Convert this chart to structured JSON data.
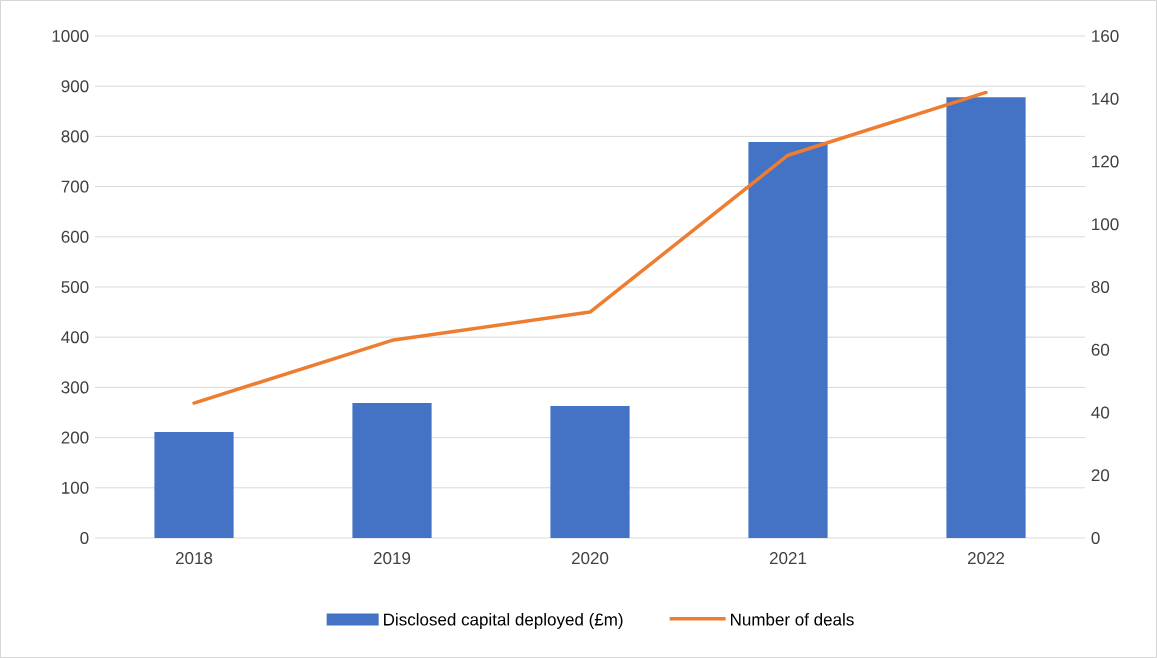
{
  "chart_data": {
    "type": "bar",
    "categories": [
      "2018",
      "2019",
      "2020",
      "2021",
      "2022"
    ],
    "series": [
      {
        "name": "Disclosed capital deployed (£m)",
        "color": "#4472c4",
        "values": [
          211,
          269,
          263,
          789,
          878
        ]
      },
      {
        "name": "Number of deals",
        "type": "line",
        "axis": "y2",
        "color": "#ed7d31",
        "values": [
          43,
          63,
          72,
          122,
          142
        ]
      }
    ],
    "ylim": [
      0,
      1000
    ],
    "yticks": [
      0,
      100,
      200,
      300,
      400,
      500,
      600,
      700,
      800,
      900,
      1000
    ],
    "y2lim": [
      0,
      160
    ],
    "y2ticks": [
      0,
      20,
      40,
      60,
      80,
      100,
      120,
      140,
      160
    ],
    "grid": "y",
    "legend": "bottom",
    "marker": "none"
  }
}
